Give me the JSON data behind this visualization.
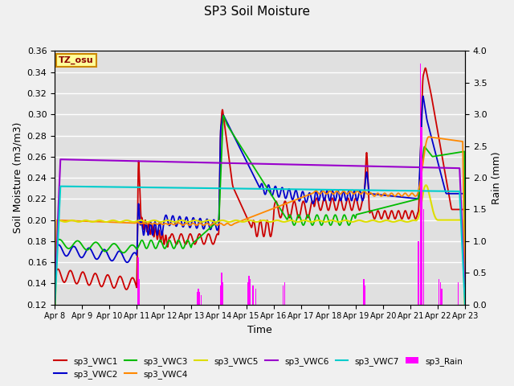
{
  "title": "SP3 Soil Moisture",
  "ylabel_left": "Soil Moisture (m3/m3)",
  "ylabel_right": "Rain (mm)",
  "xlabel": "Time",
  "ylim_left": [
    0.12,
    0.36
  ],
  "ylim_right": [
    0.0,
    4.0
  ],
  "plot_bg": "#e0e0e0",
  "fig_bg": "#f0f0f0",
  "grid_color": "#ffffff",
  "annotation_text": "TZ_osu",
  "annotation_bg": "#ffff99",
  "annotation_border": "#cc8800",
  "colors": {
    "VWC1": "#cc0000",
    "VWC2": "#0000cc",
    "VWC3": "#00bb00",
    "VWC4": "#ff8800",
    "VWC5": "#dddd00",
    "VWC6": "#9900cc",
    "VWC7": "#00cccc",
    "Rain": "#ff00ff"
  },
  "xtick_labels": [
    "Apr 8",
    "Apr 9",
    "Apr 10",
    "Apr 11",
    "Apr 12",
    "Apr 13",
    "Apr 14",
    "Apr 15",
    "Apr 16",
    "Apr 17",
    "Apr 18",
    "Apr 19",
    "Apr 20",
    "Apr 21",
    "Apr 22",
    "Apr 23"
  ],
  "yticks_left": [
    0.12,
    0.14,
    0.16,
    0.18,
    0.2,
    0.22,
    0.24,
    0.26,
    0.28,
    0.3,
    0.32,
    0.34,
    0.36
  ],
  "yticks_right": [
    0.0,
    0.5,
    1.0,
    1.5,
    2.0,
    2.5,
    3.0,
    3.5,
    4.0
  ],
  "legend_labels": [
    "sp3_VWC1",
    "sp3_VWC2",
    "sp3_VWC3",
    "sp3_VWC4",
    "sp3_VWC5",
    "sp3_VWC6",
    "sp3_VWC7",
    "sp3_Rain"
  ]
}
